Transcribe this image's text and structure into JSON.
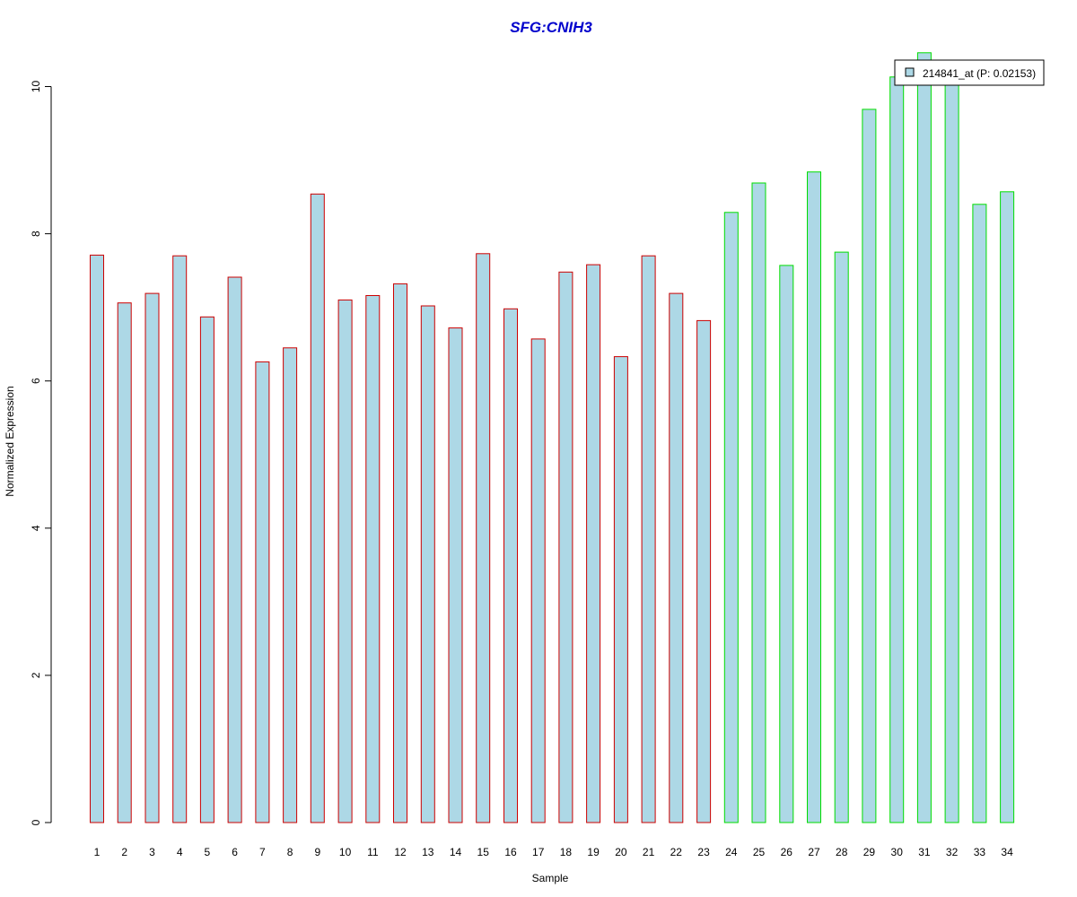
{
  "chart_data": {
    "type": "bar",
    "title": "SFG:CNIH3",
    "xlabel": "Sample",
    "ylabel": "Normalized Expression",
    "ylim": [
      0,
      10.5
    ],
    "yticks": [
      0,
      2,
      4,
      6,
      8,
      10
    ],
    "grid": false,
    "legend": {
      "position": "top-right",
      "entries": [
        "214841_at (P: 0.02153)"
      ]
    },
    "categories": [
      "1",
      "2",
      "3",
      "4",
      "5",
      "6",
      "7",
      "8",
      "9",
      "10",
      "11",
      "12",
      "13",
      "14",
      "15",
      "16",
      "17",
      "18",
      "19",
      "20",
      "21",
      "22",
      "23",
      "24",
      "25",
      "26",
      "27",
      "28",
      "29",
      "30",
      "31",
      "32",
      "33",
      "34"
    ],
    "series": [
      {
        "name": "214841_at (P: 0.02153)",
        "values": [
          7.71,
          7.06,
          7.19,
          7.7,
          6.87,
          7.41,
          6.26,
          6.45,
          8.54,
          7.1,
          7.16,
          7.32,
          7.02,
          6.72,
          7.73,
          6.98,
          6.57,
          7.48,
          7.58,
          6.33,
          7.7,
          7.19,
          6.82,
          8.29,
          8.69,
          7.57,
          8.84,
          7.75,
          9.69,
          10.13,
          10.46,
          10.06,
          8.4,
          8.57
        ],
        "fill": "#add8e6",
        "border_colors": [
          "#cc0000",
          "#cc0000",
          "#cc0000",
          "#cc0000",
          "#cc0000",
          "#cc0000",
          "#cc0000",
          "#cc0000",
          "#cc0000",
          "#cc0000",
          "#cc0000",
          "#cc0000",
          "#cc0000",
          "#cc0000",
          "#cc0000",
          "#cc0000",
          "#cc0000",
          "#cc0000",
          "#cc0000",
          "#cc0000",
          "#cc0000",
          "#cc0000",
          "#cc0000",
          "#00dd00",
          "#00dd00",
          "#00dd00",
          "#00dd00",
          "#00dd00",
          "#00dd00",
          "#00dd00",
          "#00dd00",
          "#00dd00",
          "#00dd00",
          "#00dd00"
        ]
      }
    ],
    "colors": {
      "title": "#0000cc",
      "axis": "#000000",
      "bar_fill": "#add8e6",
      "group1_border": "#cc0000",
      "group2_border": "#00dd00"
    }
  }
}
